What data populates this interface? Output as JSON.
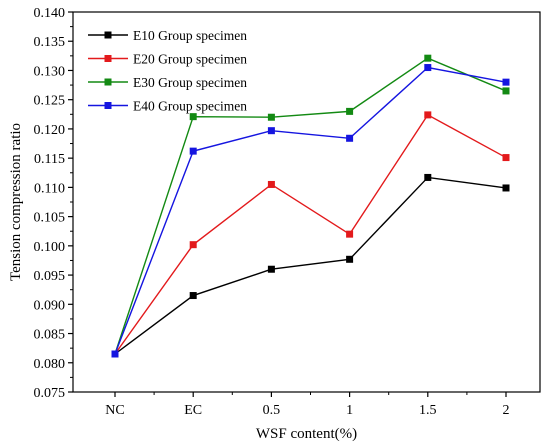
{
  "chart_data": {
    "type": "line",
    "categories": [
      "NC",
      "EC",
      "0.5",
      "1",
      "1.5",
      "2"
    ],
    "xlabel": "WSF content(%)",
    "ylabel": "Tension compression ratio",
    "ylim": [
      0.075,
      0.14
    ],
    "yticks": [
      "0.075",
      "0.080",
      "0.085",
      "0.090",
      "0.095",
      "0.100",
      "0.105",
      "0.110",
      "0.115",
      "0.120",
      "0.125",
      "0.130",
      "0.135",
      "0.140"
    ],
    "grid": false,
    "legend_position": "top-left",
    "series": [
      {
        "name": "E10 Group specimen",
        "color": "#000000",
        "values": [
          0.0815,
          0.0915,
          0.096,
          0.0977,
          0.1117,
          0.1099
        ]
      },
      {
        "name": "E20 Group specimen",
        "color": "#e31a1c",
        "values": [
          0.0815,
          0.1002,
          0.1105,
          0.102,
          0.1224,
          0.1151
        ]
      },
      {
        "name": "E30 Group specimen",
        "color": "#138a13",
        "values": [
          0.0815,
          0.1221,
          0.122,
          0.123,
          0.1321,
          0.1265
        ]
      },
      {
        "name": "E40 Group specimen",
        "color": "#1515e0",
        "values": [
          0.0815,
          0.1162,
          0.1197,
          0.1184,
          0.1305,
          0.128
        ]
      }
    ]
  }
}
